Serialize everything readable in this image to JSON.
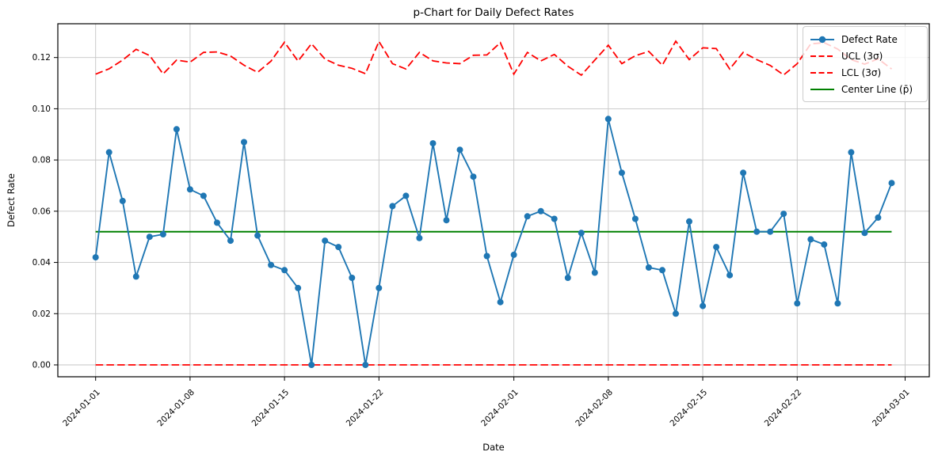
{
  "chart_data": {
    "type": "line",
    "title": "p-Chart for Daily Defect Rates",
    "xlabel": "Date",
    "ylabel": "Defect Rate",
    "grid": true,
    "legend_position": "upper right",
    "ylim": [
      -0.005,
      0.134
    ],
    "yticks": [
      0.0,
      0.02,
      0.04,
      0.06,
      0.08,
      0.1,
      0.12
    ],
    "xticks": [
      {
        "label": "2024-01-01",
        "day": 0
      },
      {
        "label": "2024-01-08",
        "day": 7
      },
      {
        "label": "2024-01-15",
        "day": 14
      },
      {
        "label": "2024-01-22",
        "day": 21
      },
      {
        "label": "2024-02-01",
        "day": 31
      },
      {
        "label": "2024-02-08",
        "day": 38
      },
      {
        "label": "2024-02-15",
        "day": 45
      },
      {
        "label": "2024-02-22",
        "day": 52
      },
      {
        "label": "2024-03-01",
        "day": 60
      }
    ],
    "x_dates": [
      "2024-01-01",
      "2024-01-02",
      "2024-01-03",
      "2024-01-04",
      "2024-01-05",
      "2024-01-06",
      "2024-01-07",
      "2024-01-08",
      "2024-01-09",
      "2024-01-10",
      "2024-01-11",
      "2024-01-12",
      "2024-01-13",
      "2024-01-14",
      "2024-01-15",
      "2024-01-16",
      "2024-01-17",
      "2024-01-18",
      "2024-01-19",
      "2024-01-20",
      "2024-01-21",
      "2024-01-22",
      "2024-01-23",
      "2024-01-24",
      "2024-01-25",
      "2024-01-26",
      "2024-01-27",
      "2024-01-28",
      "2024-01-29",
      "2024-01-30",
      "2024-01-31",
      "2024-02-01",
      "2024-02-02",
      "2024-02-03",
      "2024-02-04",
      "2024-02-05",
      "2024-02-06",
      "2024-02-07",
      "2024-02-08",
      "2024-02-09",
      "2024-02-10",
      "2024-02-11",
      "2024-02-12",
      "2024-02-13",
      "2024-02-14",
      "2024-02-15",
      "2024-02-16",
      "2024-02-17",
      "2024-02-18",
      "2024-02-19",
      "2024-02-20",
      "2024-02-21",
      "2024-02-22",
      "2024-02-23",
      "2024-02-24",
      "2024-02-25",
      "2024-02-26",
      "2024-02-27",
      "2024-02-28",
      "2024-02-29"
    ],
    "series": [
      {
        "name": "Defect Rate",
        "color": "#1f77b4",
        "style": "solid-marker",
        "values": [
          0.042,
          0.083,
          0.064,
          0.0345,
          0.05,
          0.051,
          0.092,
          0.0685,
          0.066,
          0.0555,
          0.0485,
          0.087,
          0.0505,
          0.039,
          0.037,
          0.03,
          0.0,
          0.0485,
          0.046,
          0.034,
          0.0,
          0.03,
          0.062,
          0.066,
          0.0495,
          0.0865,
          0.0565,
          0.084,
          0.0735,
          0.0425,
          0.0245,
          0.043,
          0.058,
          0.06,
          0.057,
          0.034,
          0.0515,
          0.036,
          0.096,
          0.075,
          0.057,
          0.038,
          0.037,
          0.02,
          0.056,
          0.023,
          0.046,
          0.035,
          0.075,
          0.052,
          0.052,
          0.059,
          0.024,
          0.049,
          0.047,
          0.024,
          0.083,
          0.0515,
          0.0575,
          0.071
        ]
      },
      {
        "name": "UCL (3σ)",
        "color": "#ff0000",
        "style": "dashed",
        "values": [
          0.1135,
          0.1156,
          0.119,
          0.1232,
          0.1208,
          0.1136,
          0.119,
          0.1182,
          0.122,
          0.1222,
          0.1206,
          0.117,
          0.1142,
          0.1186,
          0.126,
          0.1186,
          0.1254,
          0.1194,
          0.117,
          0.1158,
          0.1137,
          0.1263,
          0.1176,
          0.1155,
          0.122,
          0.1187,
          0.1179,
          0.1176,
          0.1209,
          0.121,
          0.1258,
          0.1135,
          0.122,
          0.1187,
          0.1212,
          0.1166,
          0.1131,
          0.119,
          0.1248,
          0.1176,
          0.1207,
          0.1224,
          0.117,
          0.1264,
          0.1192,
          0.1238,
          0.1235,
          0.1155,
          0.122,
          0.1192,
          0.1169,
          0.1132,
          0.1176,
          0.1253,
          0.1258,
          0.1233,
          0.1192,
          0.1174,
          0.1195,
          0.1155
        ]
      },
      {
        "name": "LCL (3σ)",
        "color": "#ff0000",
        "style": "dashed",
        "constant": 0.0
      },
      {
        "name": "Center Line (p̄)",
        "color": "#008000",
        "style": "solid",
        "constant": 0.052
      }
    ]
  }
}
